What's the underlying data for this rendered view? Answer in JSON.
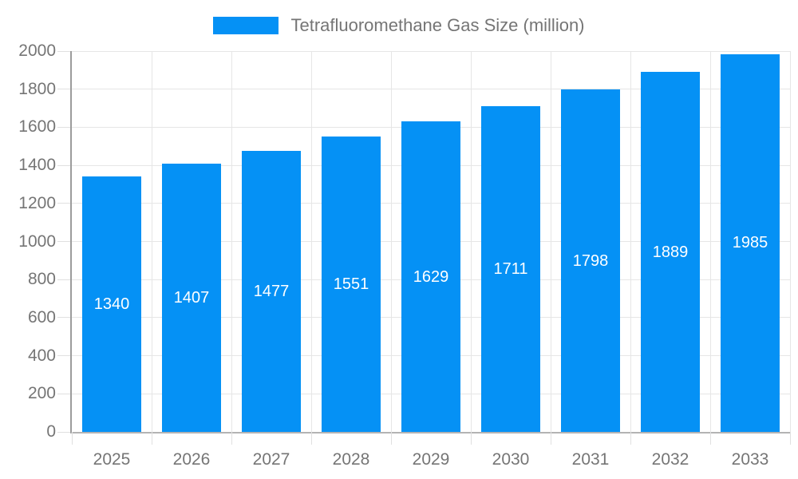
{
  "chart_data": {
    "type": "bar",
    "title": "Tetrafluoromethane Gas Size (million)",
    "categories": [
      "2025",
      "2026",
      "2027",
      "2028",
      "2029",
      "2030",
      "2031",
      "2032",
      "2033"
    ],
    "values": [
      1340,
      1407,
      1477,
      1551,
      1629,
      1711,
      1798,
      1889,
      1985
    ],
    "ylim": [
      0,
      2000
    ],
    "ytick_step": 200,
    "ytick_labels": [
      "0",
      "200",
      "400",
      "600",
      "800",
      "1000",
      "1200",
      "1400",
      "1600",
      "1800",
      "2000"
    ],
    "grid": "on",
    "legend_position": "top-center",
    "colors": {
      "bar": "#0591f5",
      "value_label": "#ffffff",
      "axis_text": "#757575",
      "gridline": "#e6e6e6",
      "tick": "#e0e0e0",
      "y_axis_line": "#9c9c9c",
      "baseline": "#b3b3b3",
      "background": "#ffffff"
    }
  }
}
